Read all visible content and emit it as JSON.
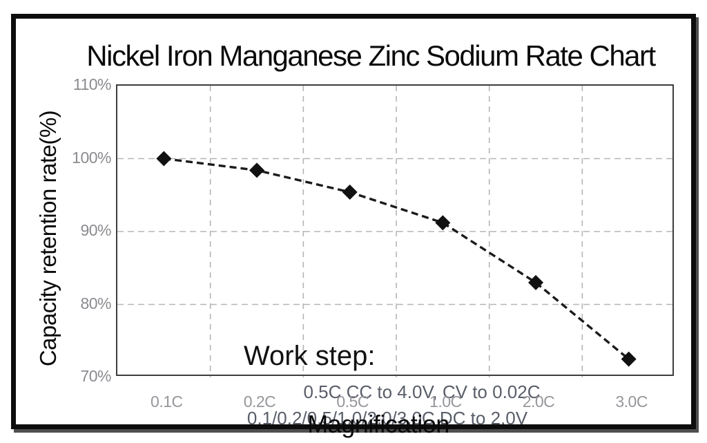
{
  "chart_data": {
    "type": "line",
    "title": "Nickel Iron Manganese Zinc Sodium Rate Chart",
    "xlabel": "Magnification",
    "ylabel": "Capacity retention rate(%)",
    "categories": [
      "0.1C",
      "0.2C",
      "0.5C",
      "1.0C",
      "2.0C",
      "3.0C"
    ],
    "series": [
      {
        "name": "Capacity retention rate (%)",
        "values": [
          100,
          98.4,
          95.4,
          91.2,
          83,
          72.5
        ]
      }
    ],
    "ylim": [
      70,
      110
    ],
    "y_ticks": [
      {
        "value": 110,
        "label": "110%"
      },
      {
        "value": 100,
        "label": "100%"
      },
      {
        "value": 90,
        "label": "90%"
      },
      {
        "value": 80,
        "label": "80%"
      },
      {
        "value": 70,
        "label": "70%"
      }
    ],
    "grid": true,
    "legend": false,
    "line_style": "dashed",
    "marker": "diamond",
    "annotations": {
      "heading": "Work step:",
      "lines": [
        "0.5C CC to 4.0V, CV to 0.02C",
        "0.1/0.2/0.5/1.0/2.0/3.0C DC to 2.0V"
      ]
    }
  },
  "colors": {
    "series_line": "#1b1b1b",
    "marker_fill": "#111111",
    "gridline": "#b5b5b5",
    "plot_frame": "#3d3d3d",
    "outer_border": "#0d0d0d",
    "tick_label": "#8b8b90",
    "annotation_text": "#585d68",
    "title_text": "#0a0a0a"
  }
}
